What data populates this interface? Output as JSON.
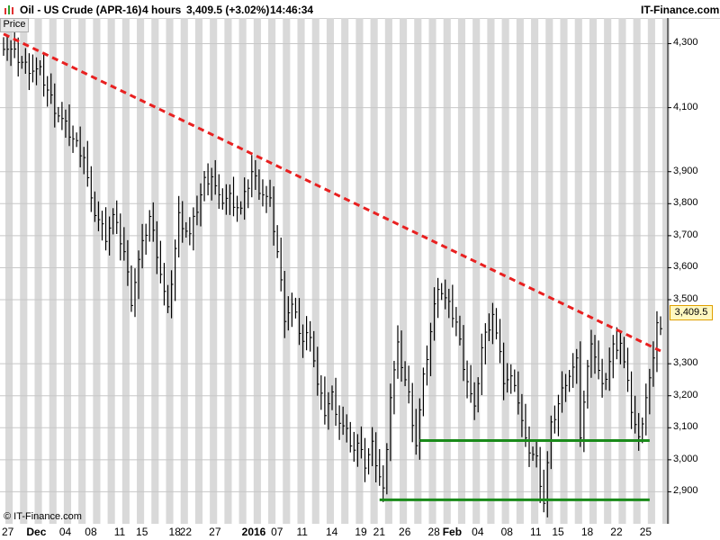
{
  "header": {
    "title": "Oil - US Crude (APR-16)",
    "interval": "4 hours",
    "last": "3,409.5 (+3.02%)",
    "time": "14:46:34",
    "brand": "IT-Finance.com"
  },
  "price_tab": "Price",
  "copyright": "© IT-Finance.com",
  "last_price_label": "3,409.5",
  "colors": {
    "trendline": "#e82020",
    "support": "#1a8a1a",
    "candle": "#000000",
    "band": "#d9d9d9"
  },
  "chart_data": {
    "type": "line",
    "ylim": [
      2800,
      4380
    ],
    "y_ticks": [
      "4,300",
      "4,100",
      "3,900",
      "3,800",
      "3,700",
      "3,600",
      "3,500",
      "3,300",
      "3,200",
      "3,100",
      "3,000",
      "2,900"
    ],
    "y_tick_values": [
      4300,
      4100,
      3900,
      3800,
      3700,
      3600,
      3500,
      3300,
      3200,
      3100,
      3000,
      2900
    ],
    "x_labels": [
      "27",
      "Dec",
      "04",
      "08",
      "11",
      "15",
      "18",
      "22",
      "27",
      "2016",
      "07",
      "11",
      "14",
      "19",
      "21",
      "26",
      "28",
      "Feb",
      "04",
      "08",
      "11",
      "15",
      "18",
      "22",
      "25"
    ],
    "x_label_bold": [
      false,
      true,
      false,
      false,
      false,
      false,
      false,
      false,
      false,
      true,
      false,
      false,
      false,
      false,
      false,
      false,
      false,
      true,
      false,
      false,
      false,
      false,
      false,
      false,
      false
    ],
    "x_label_index": [
      0,
      7,
      16,
      23,
      31,
      37,
      46,
      49,
      57,
      66,
      74,
      81,
      89,
      97,
      102,
      109,
      117,
      121,
      129,
      137,
      145,
      151,
      159,
      167,
      175
    ],
    "n_bars": 181,
    "anchors": [
      [
        0,
        4300
      ],
      [
        6,
        4230
      ],
      [
        10,
        4210
      ],
      [
        14,
        4100
      ],
      [
        18,
        4020
      ],
      [
        22,
        3950
      ],
      [
        24,
        3800
      ],
      [
        26,
        3750
      ],
      [
        28,
        3700
      ],
      [
        30,
        3760
      ],
      [
        33,
        3650
      ],
      [
        35,
        3500
      ],
      [
        37,
        3620
      ],
      [
        40,
        3760
      ],
      [
        42,
        3650
      ],
      [
        44,
        3520
      ],
      [
        45,
        3460
      ],
      [
        48,
        3760
      ],
      [
        51,
        3700
      ],
      [
        55,
        3870
      ],
      [
        57,
        3890
      ],
      [
        59,
        3810
      ],
      [
        62,
        3820
      ],
      [
        65,
        3780
      ],
      [
        68,
        3900
      ],
      [
        70,
        3850
      ],
      [
        73,
        3800
      ],
      [
        75,
        3650
      ],
      [
        77,
        3450
      ],
      [
        79,
        3480
      ],
      [
        82,
        3370
      ],
      [
        84,
        3400
      ],
      [
        86,
        3230
      ],
      [
        88,
        3150
      ],
      [
        90,
        3200
      ],
      [
        92,
        3120
      ],
      [
        94,
        3080
      ],
      [
        96,
        3030
      ],
      [
        98,
        3050
      ],
      [
        99,
        2980
      ],
      [
        101,
        3040
      ],
      [
        104,
        2900
      ],
      [
        106,
        3200
      ],
      [
        108,
        3350
      ],
      [
        111,
        3200
      ],
      [
        113,
        3050
      ],
      [
        115,
        3250
      ],
      [
        119,
        3550
      ],
      [
        121,
        3500
      ],
      [
        124,
        3430
      ],
      [
        126,
        3300
      ],
      [
        129,
        3150
      ],
      [
        131,
        3350
      ],
      [
        134,
        3460
      ],
      [
        137,
        3250
      ],
      [
        140,
        3250
      ],
      [
        143,
        3050
      ],
      [
        146,
        3000
      ],
      [
        148,
        2870
      ],
      [
        150,
        3100
      ],
      [
        154,
        3250
      ],
      [
        157,
        3300
      ],
      [
        158,
        3080
      ],
      [
        161,
        3380
      ],
      [
        164,
        3220
      ],
      [
        167,
        3350
      ],
      [
        169,
        3370
      ],
      [
        172,
        3160
      ],
      [
        174,
        3060
      ],
      [
        176,
        3200
      ],
      [
        178,
        3300
      ],
      [
        179,
        3440
      ],
      [
        180,
        3409.5
      ]
    ],
    "trendline": {
      "from": [
        0,
        4330
      ],
      "to": [
        180,
        3340
      ]
    },
    "supports": [
      {
        "from": [
          114,
          3060
        ],
        "to": [
          177,
          3060
        ]
      },
      {
        "from": [
          103,
          2875
        ],
        "to": [
          177,
          2875
        ]
      }
    ]
  }
}
